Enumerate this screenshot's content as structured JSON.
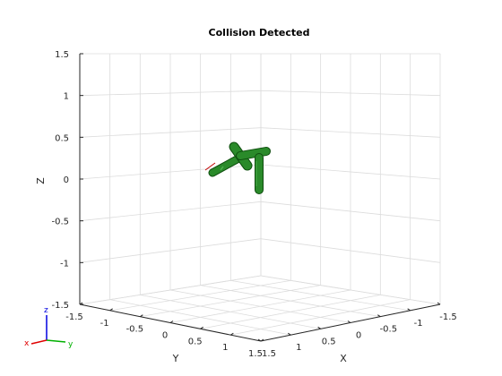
{
  "chart_data": {
    "type": "3d-plot",
    "title": "Collision Detected",
    "xlabel": "X",
    "ylabel": "Y",
    "zlabel": "Z",
    "xlim": [
      -1.5,
      1.5
    ],
    "ylim": [
      -1.5,
      1.5
    ],
    "zlim": [
      -1.5,
      1.5
    ],
    "x_ticks": [
      "-1.5",
      "-1",
      "-0.5",
      "0",
      "0.5",
      "1",
      "1.5"
    ],
    "y_ticks": [
      "-1.5",
      "-1",
      "-0.5",
      "0",
      "0.5",
      "1",
      "1.5"
    ],
    "z_ticks": [
      "1.5",
      "1",
      "0.5",
      "0",
      "-0.5",
      "-1",
      "-1.5"
    ],
    "grid": true,
    "series": [
      {
        "type": "robot-collision-bodies",
        "color": "#1f7a1f",
        "outline_color": "#0d4d0d"
      }
    ],
    "triad_labels": [
      "z",
      "x",
      "y"
    ],
    "triad_colors": {
      "x": "#e00000",
      "y": "#00b000",
      "z": "#0000e0"
    }
  }
}
